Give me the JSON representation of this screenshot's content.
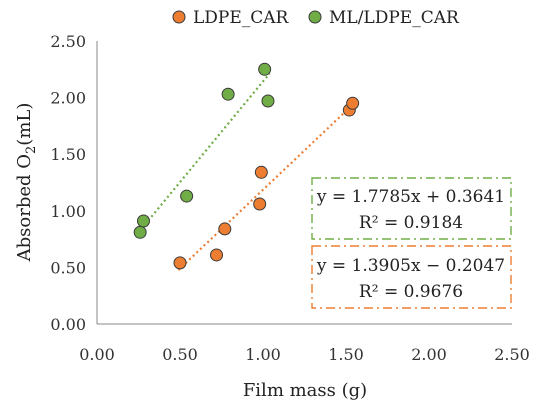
{
  "chart_data": {
    "type": "scatter",
    "xlabel": "Film mass (g)",
    "ylabel_main": "Absorbed O",
    "ylabel_sub": "2",
    "ylabel_tail": "(mL)",
    "xlim": [
      0,
      2.5
    ],
    "ylim": [
      0,
      2.5
    ],
    "xticks": [
      "0.00",
      "0.50",
      "1.00",
      "1.50",
      "2.00",
      "2.50"
    ],
    "yticks": [
      "0.00",
      "0.50",
      "1.00",
      "1.50",
      "2.00",
      "2.50"
    ],
    "grid": false,
    "legend_position": "top",
    "series": [
      {
        "name": "LDPE_CAR",
        "color": "#ED7D31",
        "points": [
          [
            0.5,
            0.54
          ],
          [
            0.72,
            0.61
          ],
          [
            0.77,
            0.84
          ],
          [
            0.98,
            1.06
          ],
          [
            0.99,
            1.34
          ],
          [
            1.52,
            1.89
          ],
          [
            1.54,
            1.95
          ]
        ],
        "trendline": {
          "slope": 1.3905,
          "intercept": -0.2047,
          "x_range": [
            0.49,
            1.54
          ],
          "style": "dotted"
        },
        "equation": "y = 1.3905x − 0.2047",
        "r2": "R² = 0.9676"
      },
      {
        "name": "ML/LDPE_CAR",
        "color": "#70AD47",
        "points": [
          [
            0.26,
            0.81
          ],
          [
            0.28,
            0.91
          ],
          [
            0.54,
            1.13
          ],
          [
            0.79,
            2.03
          ],
          [
            1.01,
            2.25
          ],
          [
            1.03,
            1.97
          ]
        ],
        "trendline": {
          "slope": 1.7785,
          "intercept": 0.3641,
          "x_range": [
            0.27,
            1.04
          ],
          "style": "dotted"
        },
        "equation": "y = 1.7785x + 0.3641",
        "r2": "R² = 0.9184"
      }
    ]
  }
}
